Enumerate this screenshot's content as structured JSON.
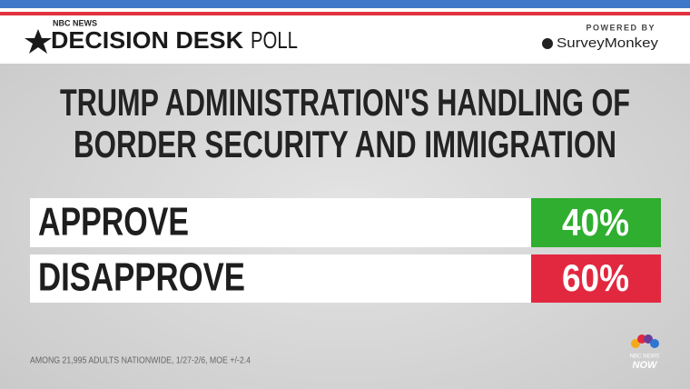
{
  "header": {
    "network": "NBC NEWS",
    "brand": "DECISION DESK",
    "product": "POLL",
    "powered_by": "POWERED BY",
    "sponsor": "SurveyMonkey"
  },
  "title": [
    "TRUMP ADMINISTRATION'S HANDLING OF",
    "BORDER SECURITY AND IMMIGRATION"
  ],
  "rows": [
    {
      "label": "APPROVE",
      "value": "40%"
    },
    {
      "label": "DISAPPROVE",
      "value": "60%"
    }
  ],
  "footnote": "AMONG 21,995 ADULTS NATIONWIDE, 1/27-2/6, MOE +/-2.4",
  "corner_logo": {
    "top": "NBC NEWS",
    "bottom": "NOW"
  }
}
